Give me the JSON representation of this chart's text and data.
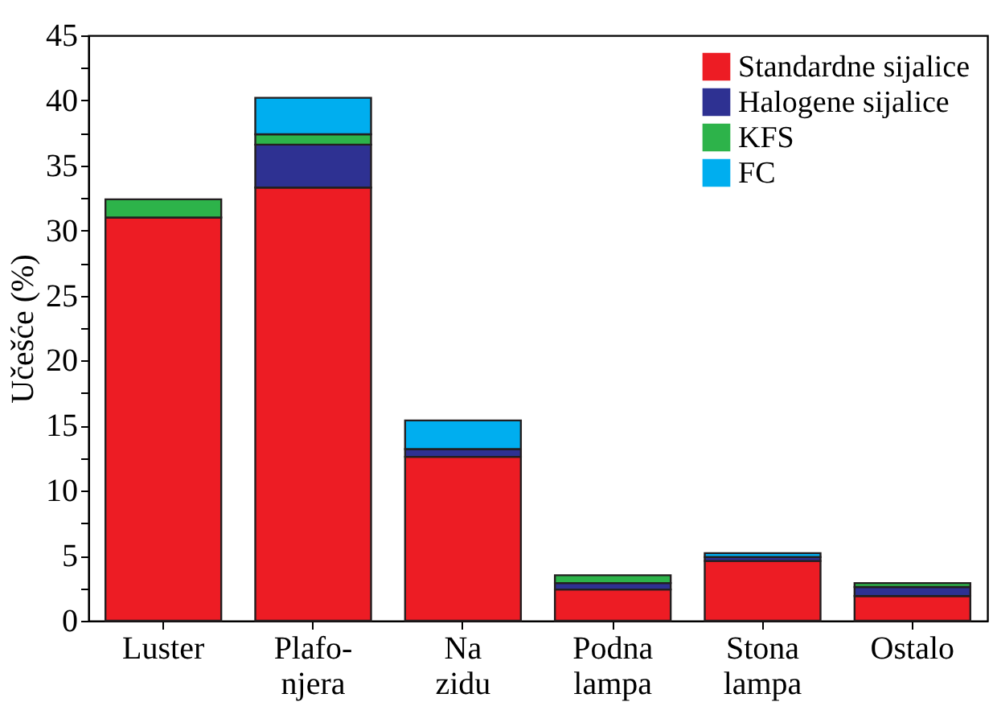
{
  "chart_data": {
    "type": "bar",
    "stacked": true,
    "ylabel": "Učešće (%)",
    "categories": [
      "Luster",
      "Plafo-\nnjera",
      "Na\nzidu",
      "Podna\nlampa",
      "Stona\nlampa",
      "Ostalo"
    ],
    "series": [
      {
        "name": "Standardne sijalice",
        "color": "#ed1c24",
        "values": [
          31.0,
          33.3,
          12.6,
          2.4,
          4.6,
          1.9
        ]
      },
      {
        "name": "Halogene sijalice",
        "color": "#2e3192",
        "values": [
          null,
          3.3,
          0.6,
          0.5,
          0.3,
          0.7
        ]
      },
      {
        "name": "KFS",
        "color": "#2db34a",
        "values": [
          1.4,
          0.8,
          null,
          0.6,
          null,
          0.3
        ]
      },
      {
        "name": "FC",
        "color": "#00aeef",
        "values": [
          null,
          2.8,
          2.2,
          null,
          0.3,
          null
        ]
      }
    ],
    "ylim": [
      0,
      45
    ],
    "yticks": [
      0,
      {
        "value": 2.5,
        "label": null
      },
      5,
      {
        "value": 7.5,
        "label": null
      },
      10,
      {
        "value": 12.5,
        "label": null
      },
      15,
      {
        "value": 17.5,
        "label": null
      },
      20,
      {
        "value": 22.5,
        "label": null
      },
      25,
      {
        "value": 27.5,
        "label": null
      },
      30,
      {
        "value": 32.5,
        "label": null
      },
      35,
      {
        "value": 37.5,
        "label": null
      },
      40,
      {
        "value": 42.5,
        "label": null
      },
      45
    ],
    "grid": false,
    "legend": "top right"
  }
}
